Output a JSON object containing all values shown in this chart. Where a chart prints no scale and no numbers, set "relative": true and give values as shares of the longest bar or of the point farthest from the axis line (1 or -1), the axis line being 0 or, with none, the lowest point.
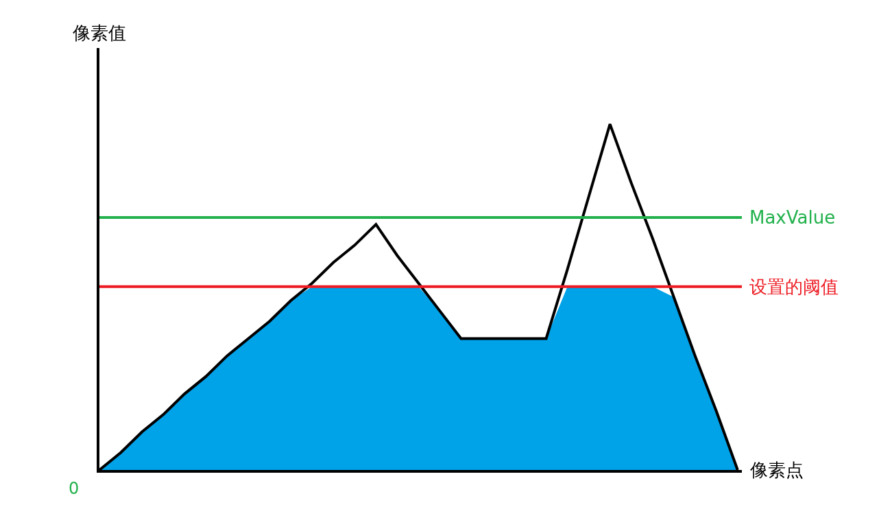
{
  "chart_data": {
    "type": "line",
    "relative": true,
    "xlabel": "像素点",
    "ylabel": "像素值",
    "categories": [
      null,
      null,
      null,
      null,
      null,
      null,
      null,
      null,
      null,
      null,
      null,
      null,
      null,
      null,
      null,
      null,
      null,
      null,
      null,
      null,
      null,
      null,
      null,
      null,
      null,
      null,
      null,
      null,
      null,
      null,
      null
    ],
    "series": [
      {
        "type": "area",
        "color": "#00a2e8",
        "values": [
          0,
          0.05,
          0.11,
          0.16,
          0.22,
          0.27,
          0.33,
          0.38,
          0.43,
          0.49,
          0.53,
          0.53,
          0.53,
          0.53,
          0.53,
          0.53,
          0.46,
          0.38,
          0.38,
          0.38,
          0.38,
          0.38,
          0.53,
          0.53,
          0.53,
          0.53,
          0.53,
          0.5,
          0.33,
          0.17,
          0
        ]
      },
      {
        "color": "#000000",
        "values": [
          0,
          0.05,
          0.11,
          0.16,
          0.22,
          0.27,
          0.33,
          0.38,
          0.43,
          0.49,
          0.54,
          0.6,
          0.65,
          0.71,
          0.62,
          0.54,
          0.46,
          0.38,
          0.38,
          0.38,
          0.38,
          0.38,
          0.58,
          0.79,
          1,
          0.83,
          0.67,
          0.5,
          0.33,
          0.17,
          0
        ]
      }
    ],
    "ref_lines": [
      {
        "axis": "y",
        "value": 0.73,
        "label": "MaxValue",
        "color": "#22b14c"
      },
      {
        "axis": "y",
        "value": 0.53,
        "label": "设置的阈值",
        "color": "#ed1c24"
      }
    ],
    "annotations": [
      "0"
    ],
    "marker": "none",
    "line_style": "solid"
  }
}
